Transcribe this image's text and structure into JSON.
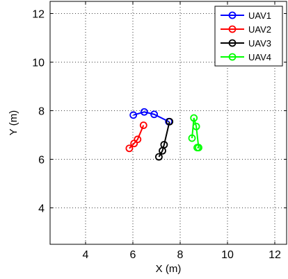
{
  "chart_data": {
    "type": "line",
    "xlabel": "X (m)",
    "ylabel": "Y (m)",
    "xlim": [
      2.5,
      12.5
    ],
    "ylim": [
      2.5,
      12.5
    ],
    "xticks": [
      4,
      6,
      8,
      10,
      12
    ],
    "yticks": [
      4,
      6,
      8,
      10,
      12
    ],
    "x_tick_labels": [
      "4",
      "6",
      "8",
      "10",
      "12"
    ],
    "y_tick_labels": [
      "4",
      "6",
      "8",
      "10",
      "12"
    ],
    "grid": true,
    "legend_position": "top-right",
    "marker": "circle",
    "series": [
      {
        "name": "UAV1",
        "color": "#0000ff",
        "x": [
          6.02,
          6.48,
          6.9,
          7.52
        ],
        "y": [
          7.82,
          7.95,
          7.85,
          7.55
        ]
      },
      {
        "name": "UAV2",
        "color": "#ff0000",
        "x": [
          5.85,
          6.05,
          6.2,
          6.45
        ],
        "y": [
          6.45,
          6.65,
          6.82,
          7.4
        ]
      },
      {
        "name": "UAV3",
        "color": "#000000",
        "x": [
          7.1,
          7.25,
          7.32,
          7.55
        ],
        "y": [
          6.1,
          6.35,
          6.6,
          7.55
        ]
      },
      {
        "name": "UAV4",
        "color": "#00ff00",
        "x": [
          8.5,
          8.58,
          8.68,
          8.78,
          8.72
        ],
        "y": [
          6.87,
          7.7,
          7.35,
          6.48,
          6.48
        ]
      }
    ]
  }
}
